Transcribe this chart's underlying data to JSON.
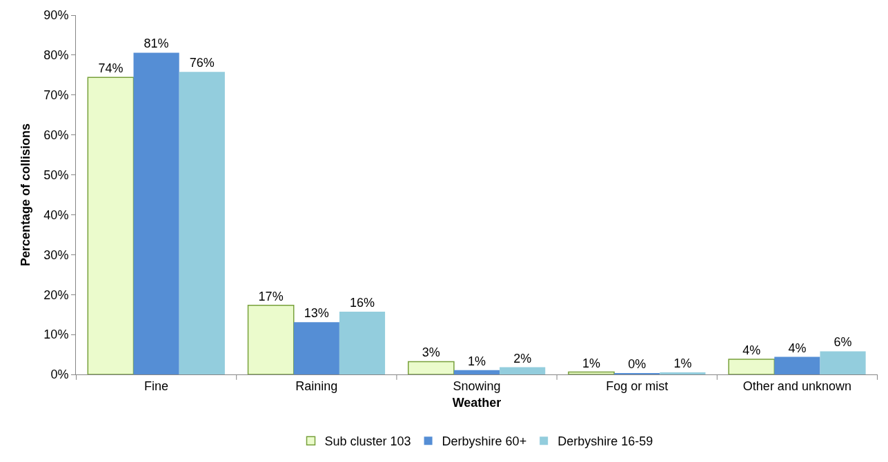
{
  "chart_data": {
    "type": "bar",
    "xlabel": "Weather",
    "ylabel": "Percentage of collisions",
    "categories": [
      "Fine",
      "Raining",
      "Snowing",
      "Fog or mist",
      "Other and unknown"
    ],
    "series": [
      {
        "name": "Sub cluster 103",
        "color": "#ebfbcc",
        "values": [
          74.4,
          17.3,
          3.2,
          0.6,
          3.8
        ],
        "value_labels": [
          "74%",
          "17%",
          "3%",
          "1%",
          "4%"
        ]
      },
      {
        "name": "Derbyshire 60+",
        "color": "#558ed5",
        "values": [
          80.6,
          13.1,
          1.1,
          0.3,
          4.4
        ],
        "value_labels": [
          "81%",
          "13%",
          "1%",
          "0%",
          "4%"
        ]
      },
      {
        "name": "Derbyshire 16-59",
        "color": "#93cddd",
        "values": [
          75.8,
          15.7,
          1.8,
          0.5,
          5.8
        ],
        "value_labels": [
          "76%",
          "16%",
          "2%",
          "1%",
          "6%"
        ]
      }
    ],
    "ylim": [
      0,
      90
    ],
    "yticks": [
      {
        "value": 0,
        "label": "0%"
      },
      {
        "value": 10,
        "label": "10%"
      },
      {
        "value": 20,
        "label": "20%"
      },
      {
        "value": 30,
        "label": "30%"
      },
      {
        "value": 40,
        "label": "40%"
      },
      {
        "value": 50,
        "label": "50%"
      },
      {
        "value": 60,
        "label": "60%"
      },
      {
        "value": 70,
        "label": "70%"
      },
      {
        "value": 80,
        "label": "80%"
      },
      {
        "value": 90,
        "label": "90%"
      }
    ],
    "legend": "bottom"
  }
}
